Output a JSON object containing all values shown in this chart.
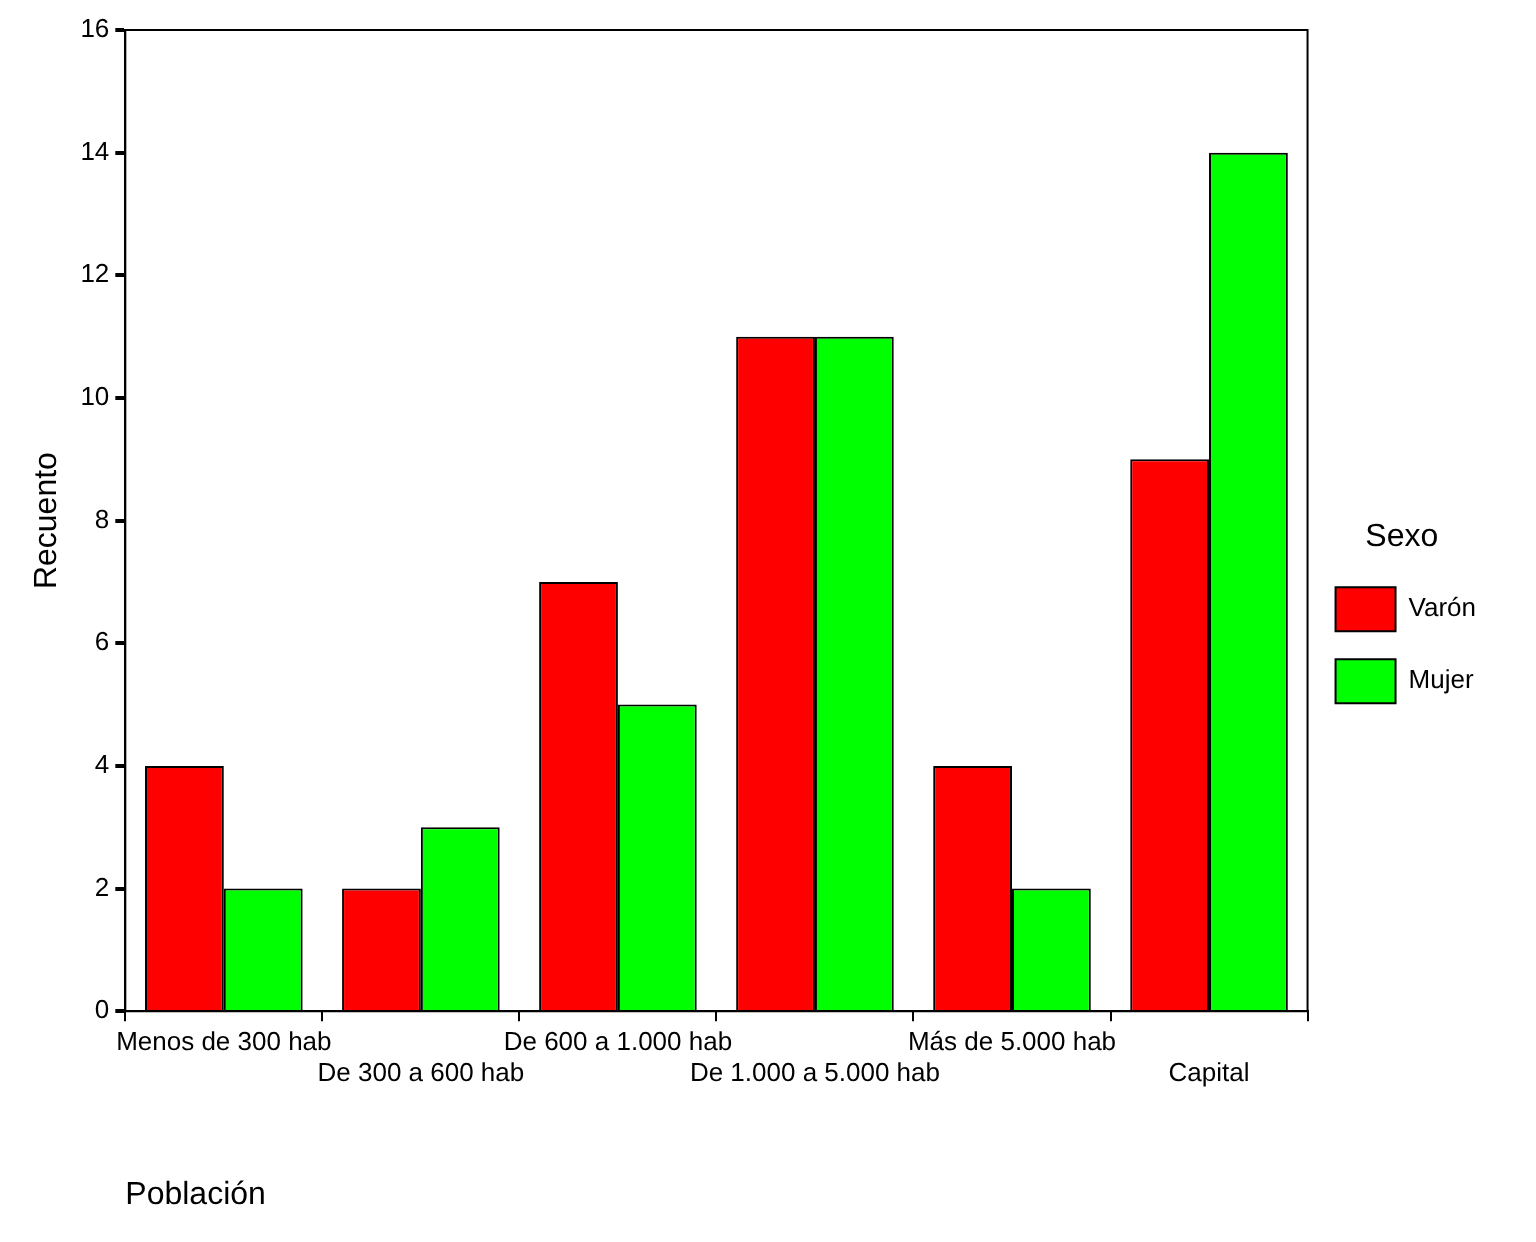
{
  "chart_data": {
    "type": "bar",
    "xlabel": "Población",
    "ylabel": "Recuento",
    "legend_title": "Sexo",
    "categories": [
      "Menos de 300 hab",
      "De 300 a 600 hab",
      "De 600 a 1.000 hab",
      "De 1.000 a 5.000 hab",
      "Más de 5.000 hab",
      "Capital"
    ],
    "series": [
      {
        "name": "Varón",
        "color": "#ff0000",
        "values": [
          4,
          2,
          7,
          11,
          4,
          9
        ]
      },
      {
        "name": "Mujer",
        "color": "#00ff00",
        "values": [
          2,
          3,
          5,
          11,
          2,
          14
        ]
      }
    ],
    "ylim": [
      0,
      16
    ],
    "yticks": [
      0,
      2,
      4,
      6,
      8,
      10,
      12,
      14,
      16
    ],
    "grid": false,
    "legend": "right"
  }
}
